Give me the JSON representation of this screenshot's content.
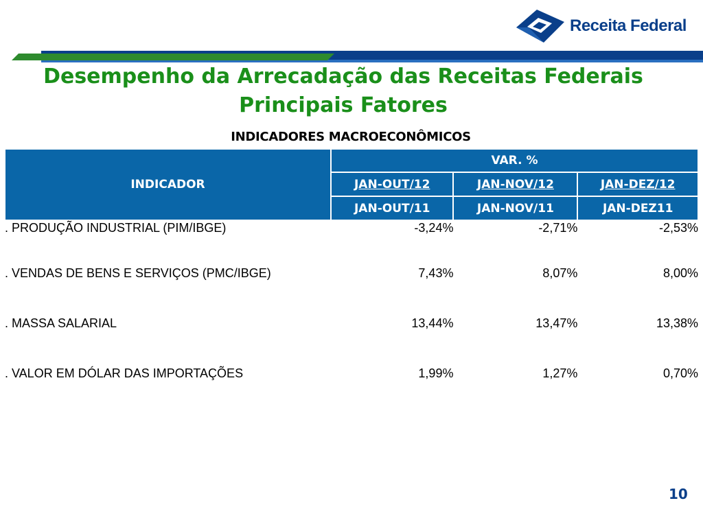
{
  "logo": {
    "text": "Receita Federal"
  },
  "title": {
    "line1": "Desempenho da Arrecadação das Receitas Federais",
    "line2": "Principais Fatores"
  },
  "subtitle": "INDICADORES MACROECONÔMICOS",
  "table": {
    "header_indicator": "INDICADOR",
    "header_var": "VAR. %",
    "periods": [
      {
        "top": "JAN-OUT/12",
        "bottom": "JAN-OUT/11"
      },
      {
        "top": "JAN-NOV/12",
        "bottom": "JAN-NOV/11"
      },
      {
        "top": "JAN-DEZ/12",
        "bottom": "JAN-DEZ11"
      }
    ],
    "rows": [
      {
        "name": ". PRODUÇÃO INDUSTRIAL (PIM/IBGE)",
        "values": [
          "-3,24%",
          "-2,71%",
          "-2,53%"
        ]
      },
      {
        "name": ". VENDAS DE BENS E SERVIÇOS (PMC/IBGE)",
        "values": [
          "7,43%",
          "8,07%",
          "8,00%"
        ]
      },
      {
        "name": ". MASSA SALARIAL",
        "values": [
          "13,44%",
          "13,47%",
          "13,38%"
        ]
      },
      {
        "name": ". VALOR EM DÓLAR DAS IMPORTAÇÕES",
        "values": [
          "1,99%",
          "1,27%",
          "0,70%"
        ]
      }
    ]
  },
  "page_number": "10",
  "colors": {
    "title_green": "#1a8f1a",
    "header_blue": "#0a66a8",
    "negative_red": "#e02020",
    "brand_blue": "#0a3f8a"
  }
}
